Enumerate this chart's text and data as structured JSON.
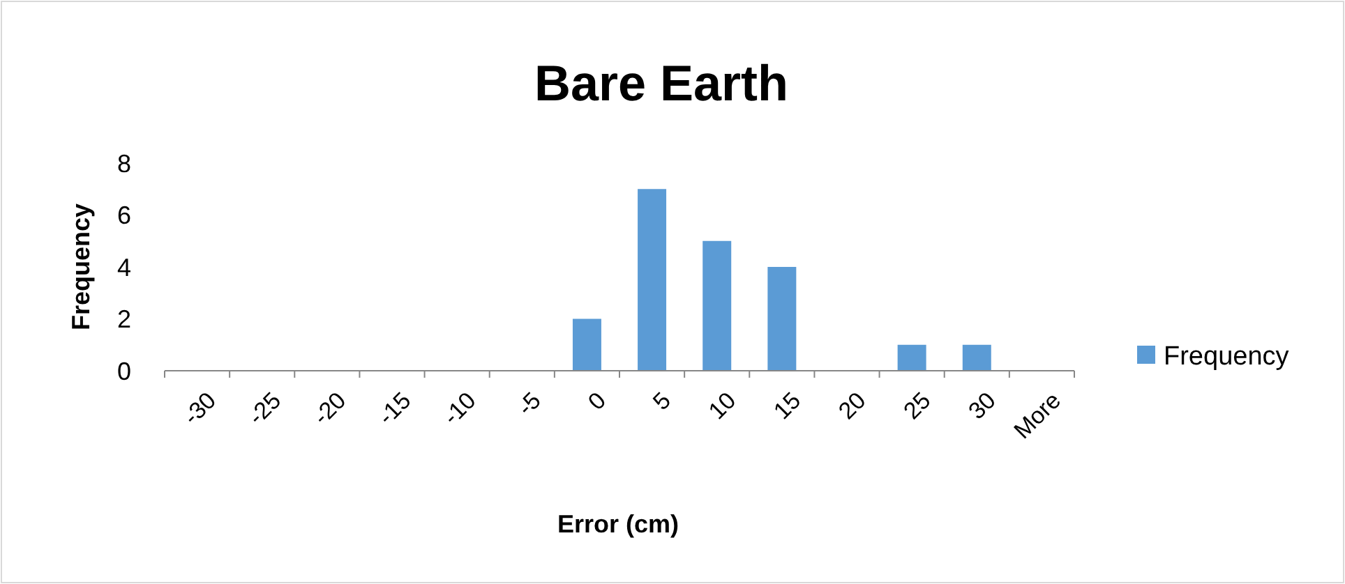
{
  "chart_data": {
    "type": "bar",
    "title": "Bare Earth",
    "xlabel": "Error (cm)",
    "ylabel": "Frequency",
    "categories": [
      "-30",
      "-25",
      "-20",
      "-15",
      "-10",
      "-5",
      "0",
      "5",
      "10",
      "15",
      "20",
      "25",
      "30",
      "More"
    ],
    "series": [
      {
        "name": "Frequency",
        "color": "#5b9bd5",
        "values": [
          0,
          0,
          0,
          0,
          0,
          0,
          2,
          7,
          5,
          4,
          0,
          1,
          1,
          0
        ]
      }
    ],
    "ylim": [
      0,
      8
    ],
    "yticks": [
      0,
      2,
      4,
      6,
      8
    ],
    "grid": false,
    "legend": "right"
  }
}
